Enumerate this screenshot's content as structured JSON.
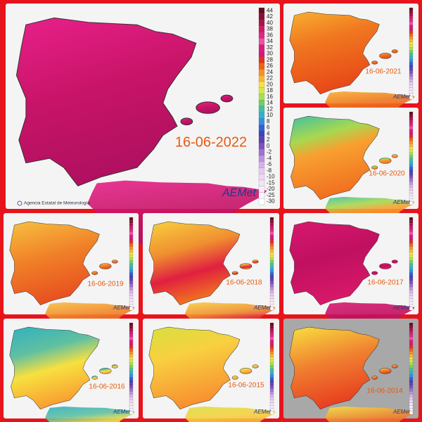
{
  "main": {
    "date": "16-06-2022",
    "agency": "Agencia Estatal de Meteorología",
    "logo": "AEMet",
    "scale": [
      44,
      42,
      40,
      38,
      36,
      34,
      32,
      30,
      28,
      26,
      24,
      22,
      20,
      18,
      16,
      14,
      12,
      10,
      8,
      6,
      4,
      2,
      0,
      -2,
      -4,
      -6,
      -8,
      -10,
      -15,
      -20,
      -25,
      -30
    ]
  },
  "panels": [
    {
      "date": "16-06-2021"
    },
    {
      "date": "16-06-2020"
    },
    {
      "date": "16-06-2019"
    },
    {
      "date": "16-06-2018"
    },
    {
      "date": "16-06-2017"
    },
    {
      "date": "16-06-2016"
    },
    {
      "date": "16-06-2015"
    },
    {
      "date": "16-06-2014"
    }
  ]
}
